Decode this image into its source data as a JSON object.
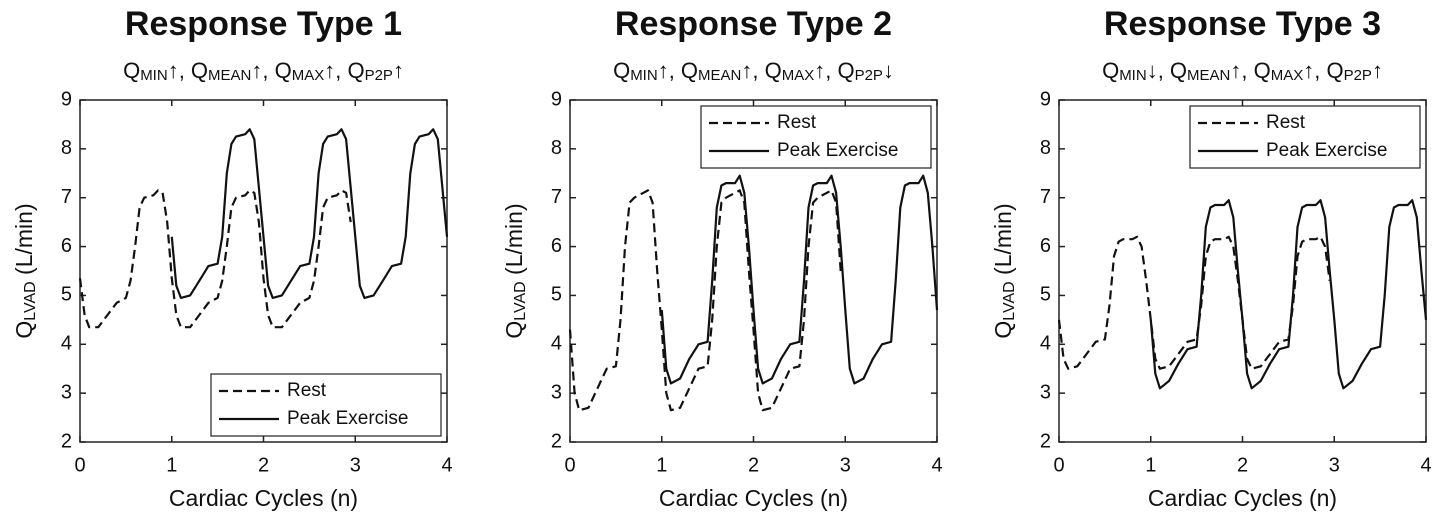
{
  "chart_data": [
    {
      "type": "line",
      "title": "Response Type 1",
      "subtitle": [
        "Q",
        "MIN",
        "↑, Q",
        "MEAN",
        "↑, Q",
        "MAX",
        "↑, Q",
        "P2P",
        "↑"
      ],
      "ylabel": [
        "Q",
        "LVAD",
        " (L/min)"
      ],
      "xlabel": "Cardiac Cycles (n)",
      "xlim": [
        0,
        4
      ],
      "xticks": [
        0,
        1,
        2,
        3,
        4
      ],
      "ylim": [
        2,
        9
      ],
      "yticks": [
        2,
        3,
        4,
        5,
        6,
        7,
        8,
        9
      ],
      "legend": "lower right",
      "series": [
        {
          "name": "Rest",
          "color": "#111111",
          "dash": true,
          "x": [
            0,
            0.05,
            0.1,
            0.2,
            0.3,
            0.4,
            0.5,
            0.55,
            0.6,
            0.65,
            0.7,
            0.8,
            0.85,
            0.9,
            0.95,
            1,
            1.05,
            1.1,
            1.2,
            1.3,
            1.4,
            1.5,
            1.55,
            1.6,
            1.65,
            1.7,
            1.8,
            1.85,
            1.9,
            1.95,
            2,
            2.05,
            2.1,
            2.2,
            2.3,
            2.4,
            2.5,
            2.55,
            2.6,
            2.65,
            2.7,
            2.8,
            2.85,
            2.9,
            2.95
          ],
          "values": [
            5.35,
            4.6,
            4.35,
            4.35,
            4.6,
            4.85,
            4.95,
            5.3,
            6.0,
            6.8,
            7.0,
            7.05,
            7.15,
            7.1,
            6.5,
            5.35,
            4.6,
            4.35,
            4.35,
            4.6,
            4.85,
            4.95,
            5.3,
            6.0,
            6.8,
            7.0,
            7.05,
            7.15,
            7.1,
            6.5,
            5.35,
            4.6,
            4.35,
            4.35,
            4.6,
            4.85,
            4.95,
            5.3,
            6.0,
            6.8,
            7.0,
            7.05,
            7.15,
            7.1,
            6.5
          ]
        },
        {
          "name": "Peak Exercise",
          "color": "#111111",
          "dash": false,
          "x": [
            1,
            1.05,
            1.1,
            1.2,
            1.3,
            1.4,
            1.5,
            1.55,
            1.6,
            1.65,
            1.7,
            1.8,
            1.85,
            1.9,
            1.95,
            2,
            2.05,
            2.1,
            2.2,
            2.3,
            2.4,
            2.5,
            2.55,
            2.6,
            2.65,
            2.7,
            2.8,
            2.85,
            2.9,
            2.95,
            3,
            3.05,
            3.1,
            3.2,
            3.3,
            3.4,
            3.5,
            3.55,
            3.6,
            3.65,
            3.7,
            3.8,
            3.85,
            3.9,
            3.95,
            4
          ],
          "values": [
            6.2,
            5.2,
            4.95,
            5.0,
            5.3,
            5.6,
            5.65,
            6.2,
            7.5,
            8.1,
            8.25,
            8.3,
            8.4,
            8.2,
            7.2,
            6.2,
            5.2,
            4.95,
            5.0,
            5.3,
            5.6,
            5.65,
            6.2,
            7.5,
            8.1,
            8.25,
            8.3,
            8.4,
            8.2,
            7.2,
            6.2,
            5.2,
            4.95,
            5.0,
            5.3,
            5.6,
            5.65,
            6.2,
            7.5,
            8.1,
            8.25,
            8.3,
            8.4,
            8.2,
            7.2,
            6.2
          ]
        }
      ]
    },
    {
      "type": "line",
      "title": "Response Type 2",
      "subtitle": [
        "Q",
        "MIN",
        "↑, Q",
        "MEAN",
        "↑, Q",
        "MAX",
        "↑, Q",
        "P2P",
        "↓"
      ],
      "ylabel": [
        "Q",
        "LVAD",
        " (L/min)"
      ],
      "xlabel": "Cardiac Cycles (n)",
      "xlim": [
        0,
        4
      ],
      "xticks": [
        0,
        1,
        2,
        3,
        4
      ],
      "ylim": [
        2,
        9
      ],
      "yticks": [
        2,
        3,
        4,
        5,
        6,
        7,
        8,
        9
      ],
      "legend": "upper right",
      "series": [
        {
          "name": "Rest",
          "color": "#111111",
          "dash": true,
          "x": [
            0,
            0.05,
            0.1,
            0.2,
            0.3,
            0.4,
            0.5,
            0.55,
            0.6,
            0.65,
            0.7,
            0.8,
            0.85,
            0.9,
            0.95,
            1,
            1.05,
            1.1,
            1.2,
            1.3,
            1.4,
            1.5,
            1.55,
            1.6,
            1.65,
            1.7,
            1.8,
            1.85,
            1.9,
            1.95,
            2,
            2.05,
            2.1,
            2.2,
            2.3,
            2.4,
            2.5,
            2.55,
            2.6,
            2.65,
            2.7,
            2.8,
            2.85,
            2.9,
            2.95
          ],
          "values": [
            4.3,
            3.0,
            2.65,
            2.7,
            3.1,
            3.5,
            3.55,
            4.5,
            6.0,
            6.9,
            7.0,
            7.1,
            7.15,
            6.9,
            5.5,
            4.3,
            3.0,
            2.65,
            2.7,
            3.1,
            3.5,
            3.55,
            4.5,
            6.0,
            6.9,
            7.0,
            7.1,
            7.15,
            6.9,
            5.5,
            4.3,
            3.0,
            2.65,
            2.7,
            3.1,
            3.5,
            3.55,
            4.5,
            6.0,
            6.9,
            7.0,
            7.1,
            7.15,
            6.9,
            5.5
          ]
        },
        {
          "name": "Peak Exercise",
          "color": "#111111",
          "dash": false,
          "x": [
            1,
            1.05,
            1.1,
            1.2,
            1.3,
            1.4,
            1.5,
            1.55,
            1.6,
            1.65,
            1.7,
            1.8,
            1.85,
            1.9,
            1.95,
            2,
            2.05,
            2.1,
            2.2,
            2.3,
            2.4,
            2.5,
            2.55,
            2.6,
            2.65,
            2.7,
            2.8,
            2.85,
            2.9,
            2.95,
            3,
            3.05,
            3.1,
            3.2,
            3.3,
            3.4,
            3.5,
            3.55,
            3.6,
            3.65,
            3.7,
            3.8,
            3.85,
            3.9,
            3.95,
            4
          ],
          "values": [
            4.7,
            3.5,
            3.2,
            3.3,
            3.7,
            4.0,
            4.05,
            5.3,
            6.8,
            7.25,
            7.3,
            7.3,
            7.45,
            7.1,
            6.0,
            4.7,
            3.5,
            3.2,
            3.3,
            3.7,
            4.0,
            4.05,
            5.3,
            6.8,
            7.25,
            7.3,
            7.3,
            7.45,
            7.1,
            6.0,
            4.7,
            3.5,
            3.2,
            3.3,
            3.7,
            4.0,
            4.05,
            5.3,
            6.8,
            7.25,
            7.3,
            7.3,
            7.45,
            7.1,
            6.0,
            4.7
          ]
        }
      ]
    },
    {
      "type": "line",
      "title": "Response Type 3",
      "subtitle": [
        "Q",
        "MIN",
        "↓, Q",
        "MEAN",
        "↑, Q",
        "MAX",
        "↑, Q",
        "P2P",
        "↑"
      ],
      "ylabel": [
        "Q",
        "LVAD",
        " (L/min)"
      ],
      "xlabel": "Cardiac Cycles (n)",
      "xlim": [
        0,
        4
      ],
      "xticks": [
        0,
        1,
        2,
        3,
        4
      ],
      "ylim": [
        2,
        9
      ],
      "yticks": [
        2,
        3,
        4,
        5,
        6,
        7,
        8,
        9
      ],
      "legend": "upper right",
      "series": [
        {
          "name": "Rest",
          "color": "#111111",
          "dash": true,
          "x": [
            0,
            0.05,
            0.1,
            0.2,
            0.3,
            0.4,
            0.5,
            0.55,
            0.6,
            0.65,
            0.7,
            0.8,
            0.85,
            0.9,
            0.95,
            1,
            1.05,
            1.1,
            1.2,
            1.3,
            1.4,
            1.5,
            1.55,
            1.6,
            1.65,
            1.7,
            1.8,
            1.85,
            1.9,
            1.95,
            2,
            2.05,
            2.1,
            2.2,
            2.3,
            2.4,
            2.5,
            2.55,
            2.6,
            2.65,
            2.7,
            2.8,
            2.85,
            2.9,
            2.95
          ],
          "values": [
            4.5,
            3.7,
            3.5,
            3.55,
            3.8,
            4.05,
            4.1,
            4.8,
            5.8,
            6.1,
            6.15,
            6.15,
            6.2,
            6.0,
            5.3,
            4.5,
            3.7,
            3.5,
            3.55,
            3.8,
            4.05,
            4.1,
            4.8,
            5.8,
            6.1,
            6.15,
            6.15,
            6.2,
            6.0,
            5.3,
            4.5,
            3.7,
            3.5,
            3.55,
            3.8,
            4.05,
            4.1,
            4.8,
            5.8,
            6.1,
            6.15,
            6.15,
            6.2,
            6.0,
            5.3
          ]
        },
        {
          "name": "Peak Exercise",
          "color": "#111111",
          "dash": false,
          "x": [
            1,
            1.05,
            1.1,
            1.2,
            1.3,
            1.4,
            1.5,
            1.55,
            1.6,
            1.65,
            1.7,
            1.8,
            1.85,
            1.9,
            1.95,
            2,
            2.05,
            2.1,
            2.2,
            2.3,
            2.4,
            2.5,
            2.55,
            2.6,
            2.65,
            2.7,
            2.8,
            2.85,
            2.9,
            2.95,
            3,
            3.05,
            3.1,
            3.2,
            3.3,
            3.4,
            3.5,
            3.55,
            3.6,
            3.65,
            3.7,
            3.8,
            3.85,
            3.9,
            3.95,
            4
          ],
          "values": [
            4.5,
            3.4,
            3.1,
            3.25,
            3.6,
            3.9,
            3.95,
            5.0,
            6.4,
            6.8,
            6.85,
            6.85,
            6.95,
            6.6,
            5.5,
            4.5,
            3.4,
            3.1,
            3.25,
            3.6,
            3.9,
            3.95,
            5.0,
            6.4,
            6.8,
            6.85,
            6.85,
            6.95,
            6.6,
            5.5,
            4.5,
            3.4,
            3.1,
            3.25,
            3.6,
            3.9,
            3.95,
            5.0,
            6.4,
            6.8,
            6.85,
            6.85,
            6.95,
            6.6,
            5.5,
            4.5
          ]
        }
      ]
    }
  ]
}
